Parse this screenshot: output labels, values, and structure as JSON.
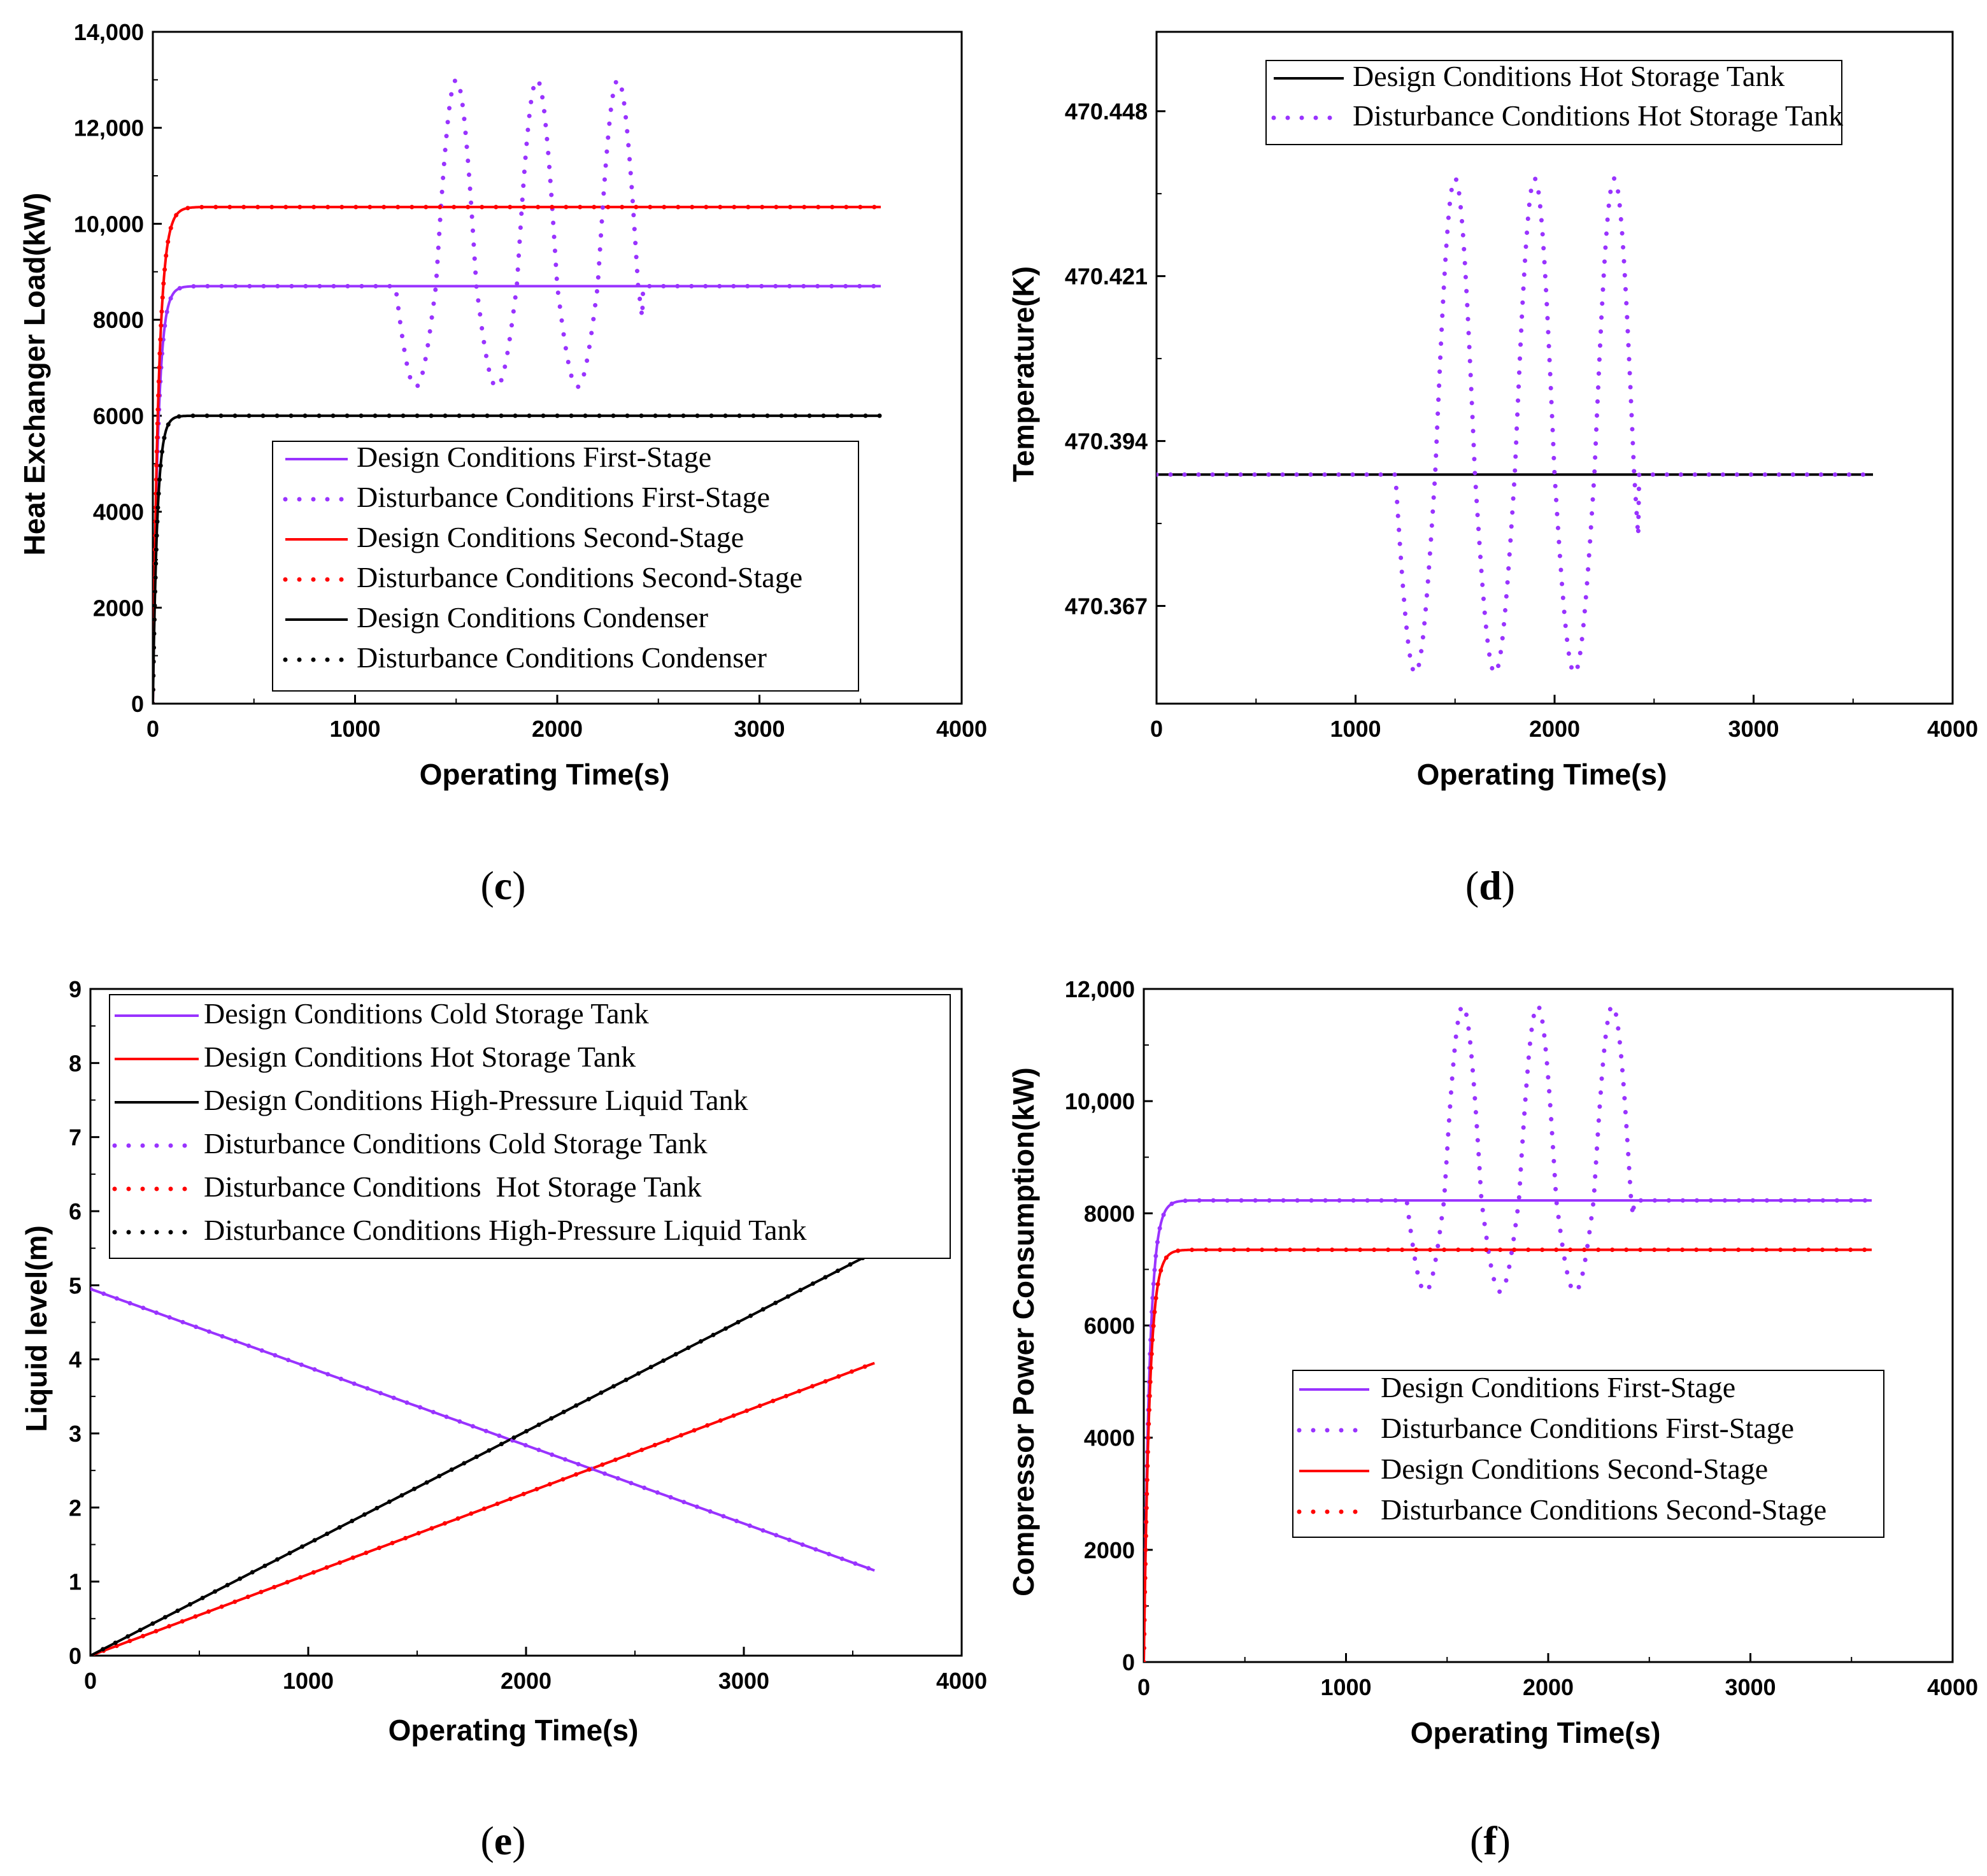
{
  "colors": {
    "purple": "#9933ff",
    "red": "#ff0000",
    "black": "#000000"
  },
  "panels": [
    {
      "label_open": "(",
      "label_letter": "c",
      "label_close": ")"
    },
    {
      "label_open": "(",
      "label_letter": "d",
      "label_close": ")"
    },
    {
      "label_open": "(",
      "label_letter": "e",
      "label_close": ")"
    },
    {
      "label_open": "(",
      "label_letter": "f",
      "label_close": ")"
    }
  ],
  "chart_data": [
    {
      "id": "c",
      "type": "line",
      "xlabel": "Operating Time(s)",
      "ylabel": "Heat Exchanger Load(kW)",
      "xlim": [
        0,
        4000
      ],
      "ylim": [
        0,
        14000
      ],
      "xticks": [
        0,
        1000,
        2000,
        3000,
        4000
      ],
      "xtick_labels": [
        "0",
        "1000",
        "2000",
        "3000",
        "4000"
      ],
      "yticks": [
        0,
        2000,
        4000,
        6000,
        8000,
        10000,
        12000,
        14000
      ],
      "ytick_labels": [
        "0",
        "2000",
        "4000",
        "6000",
        "8000",
        "10,000",
        "12,000",
        "14,000"
      ],
      "legend_position": "center-right",
      "series": [
        {
          "name": "Design Conditions First-Stage",
          "color": "purple",
          "style": "solid",
          "kind": "step",
          "final": 8700,
          "rise_time": 80
        },
        {
          "name": "Disturbance Conditions First-Stage",
          "color": "purple",
          "style": "dotted",
          "kind": "step-osc",
          "final": 8700,
          "rise_time": 80,
          "osc_start": 1200,
          "osc_end": 2420,
          "osc_period": 400,
          "osc_min": 6600,
          "osc_max": 13000
        },
        {
          "name": "Design Conditions Second-Stage",
          "color": "red",
          "style": "solid",
          "kind": "step",
          "final": 10350,
          "rise_time": 90
        },
        {
          "name": "Disturbance Conditions Second-Stage",
          "color": "red",
          "style": "dotted",
          "kind": "step",
          "final": 10350,
          "rise_time": 90
        },
        {
          "name": "Design Conditions Condenser",
          "color": "black",
          "style": "solid",
          "kind": "step",
          "final": 6000,
          "rise_time": 70
        },
        {
          "name": "Disturbance Conditions Condenser",
          "color": "black",
          "style": "dotted",
          "kind": "step",
          "final": 6000,
          "rise_time": 70
        }
      ]
    },
    {
      "id": "d",
      "type": "line",
      "xlabel": "Operating Time(s)",
      "ylabel": "Temperature(K)",
      "xlim": [
        0,
        4000
      ],
      "ylim": [
        470.351,
        470.461
      ],
      "xticks": [
        0,
        1000,
        2000,
        3000,
        4000
      ],
      "xtick_labels": [
        "0",
        "1000",
        "2000",
        "3000",
        "4000"
      ],
      "yticks": [
        470.367,
        470.394,
        470.421,
        470.448
      ],
      "ytick_labels": [
        "470.367",
        "470.394",
        "470.421",
        "470.448"
      ],
      "legend_position": "top-right",
      "series": [
        {
          "name": "Design Conditions Hot Storage Tank",
          "color": "black",
          "style": "solid",
          "kind": "flat",
          "final": 470.3885
        },
        {
          "name": "Disturbance Conditions Hot Storage Tank",
          "color": "purple",
          "style": "dotted",
          "kind": "flat-osc",
          "final": 470.3885,
          "osc_start": 1200,
          "osc_end": 2420,
          "osc_period": 400,
          "osc_min": 470.356,
          "osc_max": 470.437
        }
      ]
    },
    {
      "id": "e",
      "type": "line",
      "xlabel": "Operating Time(s)",
      "ylabel": "Liquid level(m)",
      "xlim": [
        0,
        4000
      ],
      "ylim": [
        0,
        9
      ],
      "xticks": [
        0,
        1000,
        2000,
        3000,
        4000
      ],
      "xtick_labels": [
        "0",
        "1000",
        "2000",
        "3000",
        "4000"
      ],
      "yticks": [
        0,
        1,
        2,
        3,
        4,
        5,
        6,
        7,
        8,
        9
      ],
      "ytick_labels": [
        "0",
        "1",
        "2",
        "3",
        "4",
        "5",
        "6",
        "7",
        "8",
        "9"
      ],
      "legend_position": "top",
      "series": [
        {
          "name": "Design Conditions Cold Storage Tank",
          "color": "purple",
          "style": "solid",
          "kind": "linear",
          "x": [
            0,
            3600
          ],
          "y": [
            4.95,
            1.15
          ]
        },
        {
          "name": "Design Conditions Hot Storage Tank",
          "color": "red",
          "style": "solid",
          "kind": "linear",
          "x": [
            0,
            3600
          ],
          "y": [
            0,
            3.95
          ]
        },
        {
          "name": "Design Conditions High-Pressure Liquid Tank",
          "color": "black",
          "style": "solid",
          "kind": "linear",
          "x": [
            0,
            3600
          ],
          "y": [
            0,
            5.45
          ]
        },
        {
          "name": "Disturbance Conditions Cold Storage Tank",
          "color": "purple",
          "style": "dotted",
          "kind": "linear",
          "x": [
            0,
            3600
          ],
          "y": [
            4.95,
            1.15
          ]
        },
        {
          "name": "Disturbance Conditions  Hot Storage Tank",
          "color": "red",
          "style": "dotted",
          "kind": "linear",
          "x": [
            0,
            3600
          ],
          "y": [
            0,
            3.95
          ]
        },
        {
          "name": "Disturbance Conditions High-Pressure Liquid Tank",
          "color": "black",
          "style": "dotted",
          "kind": "linear",
          "x": [
            0,
            3600
          ],
          "y": [
            0,
            5.45
          ]
        }
      ]
    },
    {
      "id": "f",
      "type": "line",
      "xlabel": "Operating Time(s)",
      "ylabel": "Compressor Power Consumption(kW)",
      "xlim": [
        0,
        4000
      ],
      "ylim": [
        0,
        12000
      ],
      "xticks": [
        0,
        1000,
        2000,
        3000,
        4000
      ],
      "xtick_labels": [
        "0",
        "1000",
        "2000",
        "3000",
        "4000"
      ],
      "yticks": [
        0,
        2000,
        4000,
        6000,
        8000,
        10000,
        12000
      ],
      "ytick_labels": [
        "0",
        "2000",
        "4000",
        "6000",
        "8000",
        "10,000",
        "12,000"
      ],
      "legend_position": "lower-right",
      "series": [
        {
          "name": "Design Conditions First-Stage",
          "color": "purple",
          "style": "solid",
          "kind": "step",
          "final": 8230,
          "rise_time": 90
        },
        {
          "name": "Disturbance Conditions First-Stage",
          "color": "purple",
          "style": "dotted",
          "kind": "step-osc",
          "final": 8230,
          "rise_time": 90,
          "osc_start": 1300,
          "osc_end": 2420,
          "osc_period": 370,
          "osc_min": 6600,
          "osc_max": 11700
        },
        {
          "name": "Design Conditions Second-Stage",
          "color": "red",
          "style": "solid",
          "kind": "step",
          "final": 7350,
          "rise_time": 90
        },
        {
          "name": "Disturbance Conditions Second-Stage",
          "color": "red",
          "style": "dotted",
          "kind": "step",
          "final": 7350,
          "rise_time": 90
        }
      ]
    }
  ]
}
